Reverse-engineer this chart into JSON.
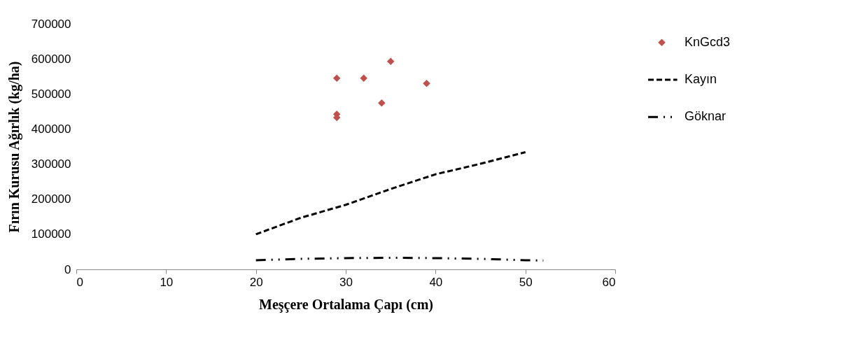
{
  "chart_data": {
    "type": "line",
    "xlabel": "Meşçere Ortalama Çapı (cm)",
    "ylabel": "Fırın Kurusu Ağırlık (kg/ha)",
    "xlim": [
      0,
      60
    ],
    "xticks": [
      0,
      10,
      20,
      30,
      40,
      50,
      60
    ],
    "ylim": [
      0,
      700000
    ],
    "yticks": [
      0,
      100000,
      200000,
      300000,
      400000,
      500000,
      600000,
      700000
    ],
    "grid": false,
    "legend": "right",
    "series": [
      {
        "name": "KnGcd3",
        "type": "scatter",
        "marker": "diamond",
        "color": "#c0504d",
        "x": [
          29,
          29,
          29,
          32,
          34,
          35,
          39
        ],
        "values": [
          545000,
          442000,
          433000,
          545000,
          474000,
          593000,
          530000
        ]
      },
      {
        "name": "Kayın",
        "line_style": "dashed",
        "color": "#000000",
        "x": [
          20,
          25,
          30,
          35,
          40,
          45,
          50
        ],
        "values": [
          100000,
          147000,
          184000,
          229000,
          271000,
          301000,
          334000
        ]
      },
      {
        "name": "Göknar",
        "line_style": "dashdotdot",
        "color": "#000000",
        "x": [
          20,
          25,
          30,
          35,
          40,
          45,
          50,
          52
        ],
        "values": [
          26000,
          30000,
          32000,
          33000,
          32000,
          30000,
          26000,
          25000
        ]
      }
    ]
  }
}
